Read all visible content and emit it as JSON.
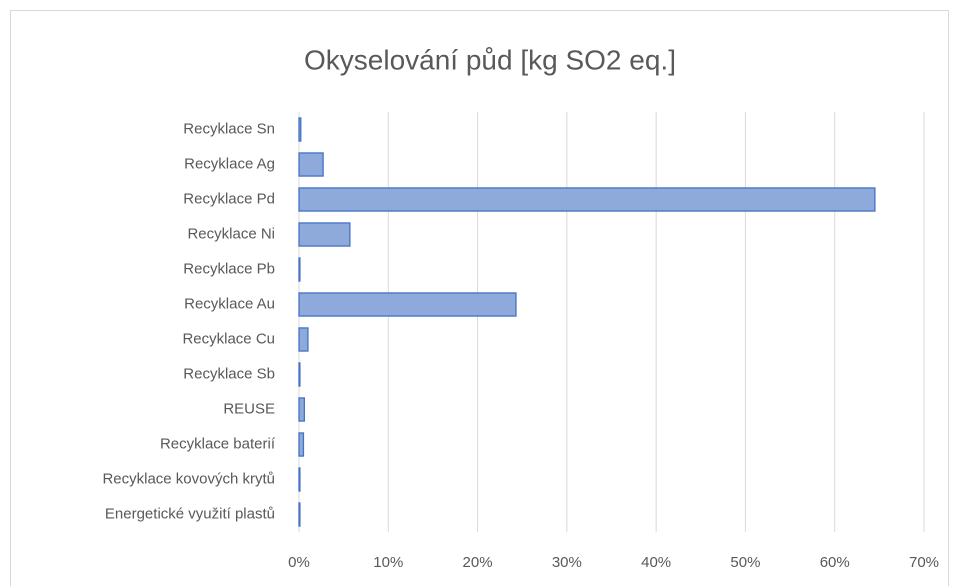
{
  "chart_data": {
    "type": "bar",
    "orientation": "horizontal",
    "title": "Okyselování půd [kg SO2 eq.]",
    "categories": [
      "Recyklace Sn",
      "Recyklace Ag",
      "Recyklace Pd",
      "Recyklace Ni",
      "Recyklace Pb",
      "Recyklace Au",
      "Recyklace Cu",
      "Recyklace Sb",
      "REUSE",
      "Recyklace baterií",
      "Recyklace kovových krytů",
      "Energetické využití plastů"
    ],
    "values": [
      0.2,
      2.7,
      64.5,
      5.7,
      0.1,
      24.3,
      1.0,
      0.1,
      0.6,
      0.5,
      0.1,
      0.1
    ],
    "color": "#8eaadb",
    "edge_color": "#4472c4",
    "xlim": [
      0,
      70
    ],
    "xticks": [
      {
        "value": 0,
        "label": "0%"
      },
      {
        "value": 10,
        "label": "10%"
      },
      {
        "value": 20,
        "label": "20%"
      },
      {
        "value": 30,
        "label": "30%"
      },
      {
        "value": 40,
        "label": "40%"
      },
      {
        "value": 50,
        "label": "50%"
      },
      {
        "value": 60,
        "label": "60%"
      },
      {
        "value": 70,
        "label": "70%"
      }
    ],
    "grid": true
  }
}
